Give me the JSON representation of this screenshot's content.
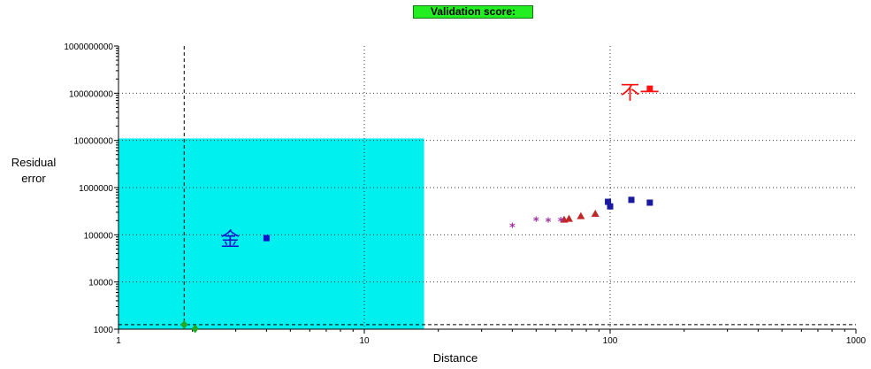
{
  "chart_data": {
    "type": "scatter",
    "title": "Validation score:",
    "xlabel": "Distance",
    "ylabel_lines": [
      "Residual",
      "error"
    ],
    "x_scale": "log",
    "y_scale": "log",
    "xlim": [
      1,
      1000
    ],
    "ylim": [
      1000,
      1000000000
    ],
    "x_ticks": [
      "1",
      "10",
      "100",
      "1000"
    ],
    "y_ticks": [
      "1000",
      "10000",
      "100000",
      "1000000",
      "10000000",
      "100000000",
      "1000000000"
    ],
    "grid": "dotted",
    "colors": {
      "region": "#00f0f0",
      "gold_series": "#1010cc",
      "dissimilar_series": "#ff1010",
      "blue_squares": "#1a1aa0",
      "red_triangles": "#c02828",
      "purple_stars": "#a030a0",
      "green_diamonds": "#22aa22"
    },
    "highlight_region": {
      "x": [
        1,
        17.5
      ],
      "y": [
        1000,
        11000000
      ],
      "color": "#00f0f0"
    },
    "dashed_lines": {
      "x": 1.85,
      "y": 1250
    },
    "annotations": [
      {
        "text": "金",
        "x": 2.6,
        "y": 85000,
        "color": "#1010cc"
      },
      {
        "text": "不一",
        "x": 110,
        "y": 110000000,
        "color": "#ff1010"
      }
    ],
    "series": [
      {
        "marker": "square",
        "color": "#1010cc",
        "points": [
          [
            4.0,
            85000
          ]
        ]
      },
      {
        "marker": "square",
        "color": "#ff1010",
        "points": [
          [
            145,
            125000000
          ]
        ]
      },
      {
        "marker": "square",
        "color": "#1a1aa0",
        "points": [
          [
            98,
            500000
          ],
          [
            100,
            400000
          ],
          [
            122,
            550000
          ],
          [
            145,
            480000
          ]
        ]
      },
      {
        "marker": "triangle",
        "color": "#c02828",
        "points": [
          [
            65,
            210000
          ],
          [
            68,
            220000
          ],
          [
            76,
            250000
          ],
          [
            87,
            280000
          ]
        ]
      },
      {
        "marker": "star",
        "color": "#a030a0",
        "points": [
          [
            40,
            145000
          ],
          [
            50,
            200000
          ],
          [
            56,
            190000
          ],
          [
            63,
            195000
          ]
        ]
      },
      {
        "marker": "diamond",
        "color": "#22aa22",
        "points": [
          [
            1.85,
            1250
          ],
          [
            2.05,
            1020
          ]
        ]
      }
    ]
  }
}
